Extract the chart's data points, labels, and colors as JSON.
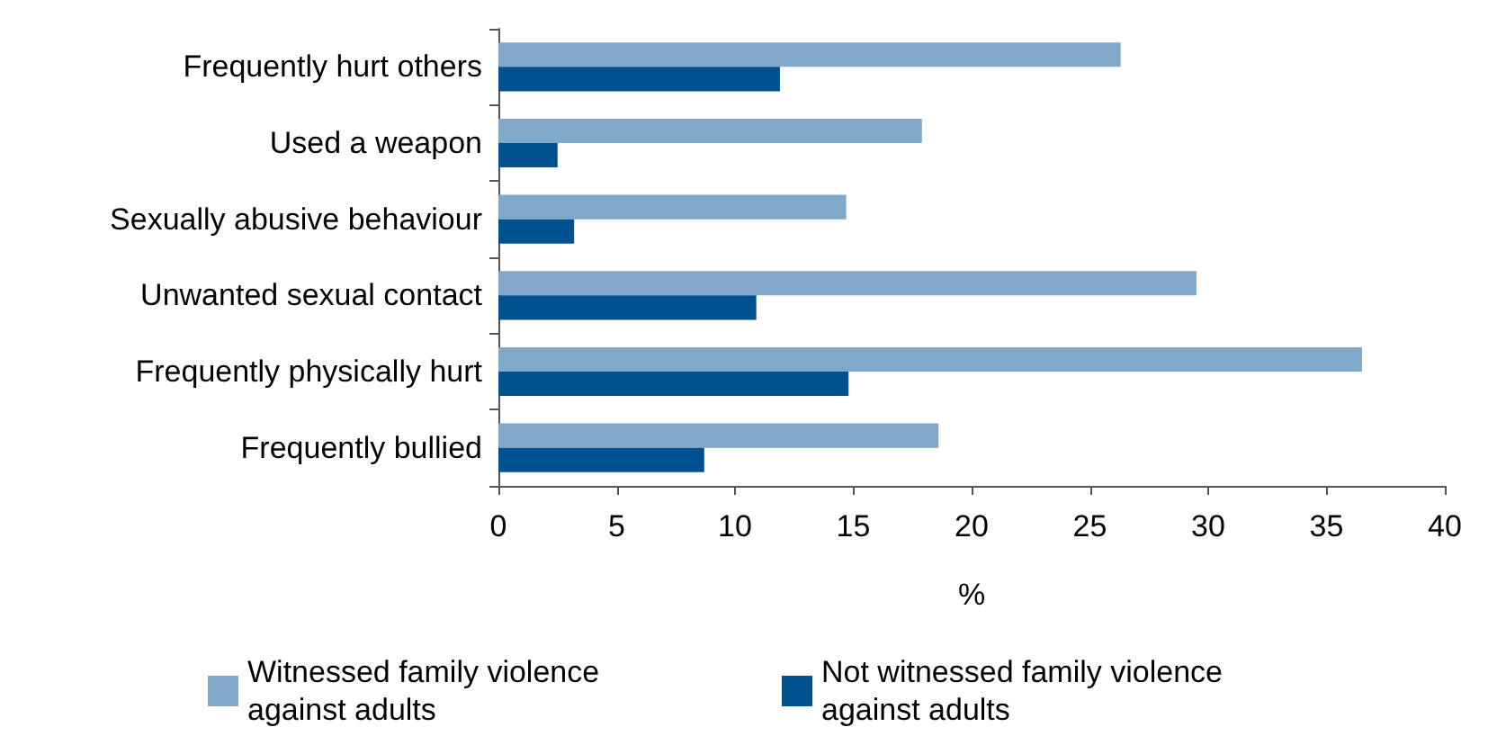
{
  "chart_data": {
    "type": "bar",
    "orientation": "horizontal",
    "xlabel": "%",
    "categories": [
      "Frequently hurt others",
      "Used a weapon",
      "Sexually abusive behaviour",
      "Unwanted sexual contact",
      "Frequently physically hurt",
      "Frequently bullied"
    ],
    "series": [
      {
        "name": "Witnessed family violence against adults",
        "color": "#7fa8c9",
        "values": [
          26.3,
          17.9,
          14.7,
          29.5,
          36.5,
          18.6
        ]
      },
      {
        "name": "Not witnessed family violence against adults",
        "color": "#00518f",
        "values": [
          11.9,
          2.5,
          3.2,
          10.9,
          14.8,
          8.7
        ]
      }
    ],
    "xlim": [
      0,
      40
    ],
    "xticks": [
      0,
      5,
      10,
      15,
      20,
      25,
      30,
      35,
      40
    ],
    "legend": "bottom"
  }
}
